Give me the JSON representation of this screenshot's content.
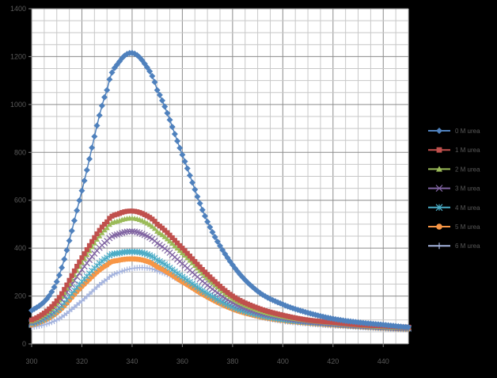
{
  "chart_data": {
    "type": "line",
    "title": "",
    "xlabel": "",
    "ylabel": "",
    "xlim": [
      300,
      450
    ],
    "ylim": [
      0,
      1400
    ],
    "x_ticks": [
      300,
      320,
      340,
      360,
      380,
      400,
      420,
      440
    ],
    "x_tick_labels": [
      "300",
      "320",
      "340",
      "360",
      "380",
      "400",
      "420",
      "440"
    ],
    "y_ticks": [
      0,
      200,
      400,
      600,
      800,
      1000,
      1200,
      1400
    ],
    "y_tick_labels": [
      "0",
      "200",
      "400",
      "600",
      "800",
      "1000",
      "1200",
      "1400"
    ],
    "grid": true,
    "legend_position": "right",
    "x": [
      300,
      310,
      320,
      330,
      335,
      340,
      345,
      350,
      360,
      370,
      380,
      390,
      400,
      410,
      420,
      430,
      440,
      450
    ],
    "series": [
      {
        "name": "0 M urea",
        "color": "#4F81BD",
        "marker": "diamond",
        "values": [
          140,
          260,
          640,
          1060,
          1180,
          1215,
          1170,
          1060,
          790,
          510,
          330,
          220,
          165,
          130,
          105,
          90,
          80,
          70
        ]
      },
      {
        "name": "1 M urea",
        "color": "#C0504D",
        "marker": "square",
        "values": [
          100,
          180,
          360,
          510,
          545,
          555,
          540,
          500,
          400,
          290,
          200,
          150,
          120,
          100,
          90,
          80,
          75,
          70
        ]
      },
      {
        "name": "2 M urea",
        "color": "#9BBB59",
        "marker": "triangle",
        "values": [
          95,
          170,
          340,
          485,
          515,
          525,
          510,
          470,
          380,
          275,
          190,
          142,
          115,
          98,
          88,
          78,
          72,
          68
        ]
      },
      {
        "name": "3 M urea",
        "color": "#8064A2",
        "marker": "x",
        "values": [
          90,
          160,
          310,
          430,
          460,
          470,
          455,
          420,
          335,
          245,
          172,
          132,
          110,
          94,
          85,
          76,
          70,
          66
        ]
      },
      {
        "name": "4 M urea",
        "color": "#4BACC6",
        "marker": "star",
        "values": [
          85,
          140,
          260,
          360,
          380,
          385,
          378,
          350,
          280,
          210,
          155,
          122,
          102,
          90,
          82,
          74,
          68,
          64
        ]
      },
      {
        "name": "5 M urea",
        "color": "#F79646",
        "marker": "circle",
        "values": [
          80,
          130,
          240,
          330,
          350,
          355,
          348,
          322,
          260,
          196,
          146,
          116,
          98,
          87,
          79,
          72,
          66,
          62
        ]
      },
      {
        "name": "6 M urea",
        "color": "#A5B4DE",
        "marker": "plus",
        "values": [
          70,
          100,
          180,
          270,
          300,
          315,
          318,
          305,
          260,
          200,
          150,
          115,
          95,
          84,
          76,
          70,
          64,
          60
        ]
      }
    ]
  }
}
